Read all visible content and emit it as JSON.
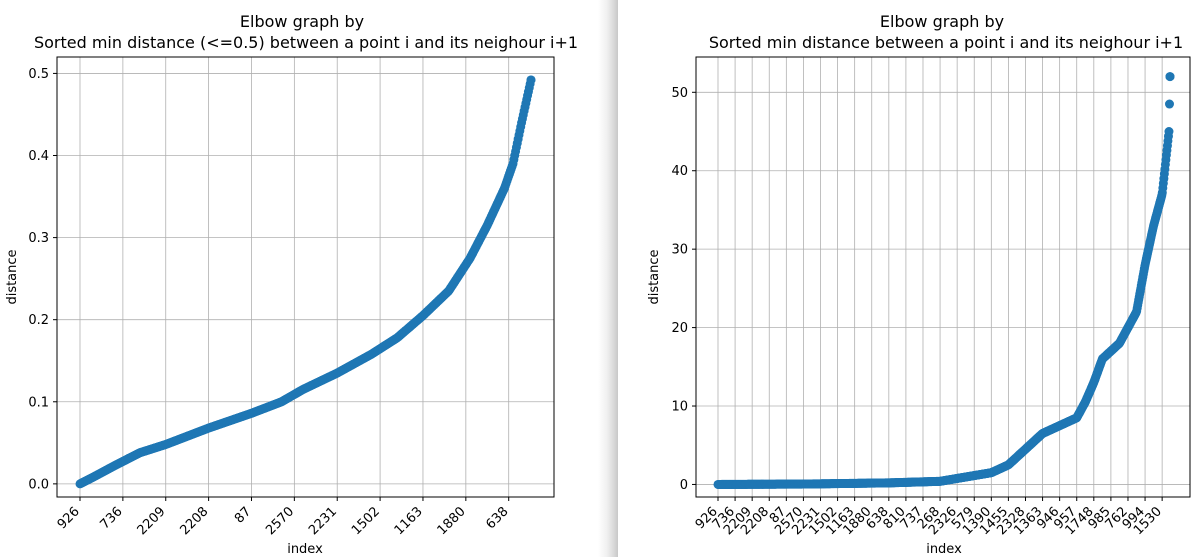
{
  "chart_data": [
    {
      "type": "scatter",
      "title": [
        "Elbow graph by",
        "Sorted min distance (<=0.5) between a point i and its neighour i+1"
      ],
      "xlabel": "index",
      "ylabel": "distance",
      "grid": true,
      "marker_color": "#1f77b4",
      "x_tick_labels": [
        "926",
        "736",
        "2209",
        "2208",
        "87",
        "2570",
        "2231",
        "1502",
        "1163",
        "1880",
        "638"
      ],
      "y_ticks": [
        0.0,
        0.1,
        0.2,
        0.3,
        0.4,
        0.5
      ],
      "y_tick_labels": [
        "0.0",
        "0.1",
        "0.2",
        "0.3",
        "0.4",
        "0.5"
      ],
      "ylim": [
        -0.016,
        0.52
      ],
      "n_points": 1053,
      "x_tick_every": 100,
      "y_profile": [
        [
          0,
          0.0
        ],
        [
          30,
          0.008
        ],
        [
          80,
          0.022
        ],
        [
          140,
          0.038
        ],
        [
          200,
          0.048
        ],
        [
          300,
          0.068
        ],
        [
          400,
          0.086
        ],
        [
          470,
          0.1
        ],
        [
          520,
          0.115
        ],
        [
          600,
          0.135
        ],
        [
          680,
          0.158
        ],
        [
          740,
          0.178
        ],
        [
          800,
          0.205
        ],
        [
          860,
          0.235
        ],
        [
          910,
          0.275
        ],
        [
          950,
          0.315
        ],
        [
          990,
          0.36
        ],
        [
          1010,
          0.39
        ],
        [
          1030,
          0.44
        ],
        [
          1052,
          0.492
        ]
      ]
    },
    {
      "type": "scatter",
      "title": [
        "Elbow graph by",
        "Sorted min distance between a point i and its neighour i+1"
      ],
      "xlabel": "index",
      "ylabel": "distance",
      "grid": true,
      "marker_color": "#1f77b4",
      "x_tick_labels": [
        "926",
        "736",
        "2209",
        "2208",
        "87",
        "2570",
        "2231",
        "1502",
        "1163",
        "1880",
        "638",
        "810",
        "737",
        "268",
        "2326",
        "579",
        "1390",
        "1455",
        "2328",
        "1363",
        "946",
        "957",
        "1748",
        "985",
        "762",
        "994",
        "1530"
      ],
      "y_ticks": [
        0,
        10,
        20,
        30,
        40,
        50
      ],
      "y_tick_labels": [
        "0",
        "10",
        "20",
        "30",
        "40",
        "50"
      ],
      "ylim": [
        -1.6,
        54.5
      ],
      "n_points": 2647,
      "x_tick_every": 100,
      "y_profile": [
        [
          0,
          0.0
        ],
        [
          500,
          0.05
        ],
        [
          1000,
          0.2
        ],
        [
          1300,
          0.4
        ],
        [
          1600,
          1.5
        ],
        [
          1700,
          2.5
        ],
        [
          1800,
          4.5
        ],
        [
          1900,
          6.5
        ],
        [
          2000,
          7.5
        ],
        [
          2100,
          8.5
        ],
        [
          2150,
          10.5
        ],
        [
          2200,
          13.0
        ],
        [
          2250,
          16.0
        ],
        [
          2300,
          17.0
        ],
        [
          2350,
          18.0
        ],
        [
          2400,
          20.0
        ],
        [
          2450,
          22.0
        ],
        [
          2500,
          28.0
        ],
        [
          2550,
          33.0
        ],
        [
          2600,
          37.0
        ],
        [
          2620,
          41.0
        ],
        [
          2640,
          45.0
        ],
        [
          2646,
          52.0
        ]
      ]
    }
  ]
}
